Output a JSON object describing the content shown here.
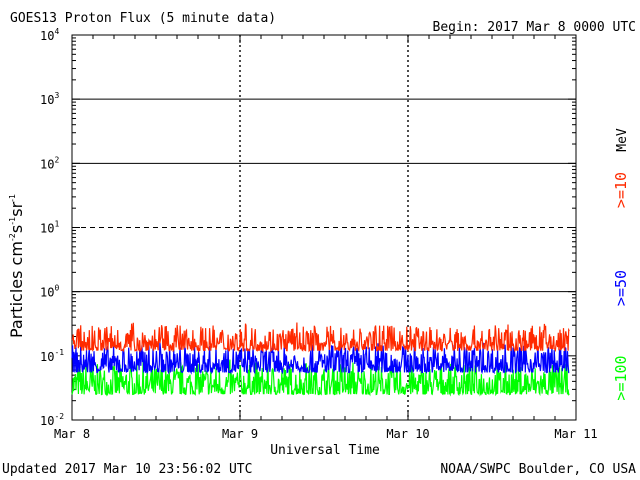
{
  "chart_data": {
    "type": "line",
    "title": "GOES13 Proton Flux (5 minute data)",
    "begin_label": "Begin: 2017 Mar 8 0000 UTC",
    "xlabel": "Universal Time",
    "ylabel_main": "Particles cm",
    "ylabel_exp1": "-2",
    "ylabel_s": "s",
    "ylabel_exp2": "-1",
    "ylabel_sr": "sr",
    "ylabel_exp3": "-1",
    "x_ticks": [
      "Mar 8",
      "Mar 9",
      "Mar 10",
      "Mar 11"
    ],
    "x_range_days": [
      0,
      3
    ],
    "y_scale": "log",
    "ylim": [
      0.01,
      10000
    ],
    "y_ticks": [
      {
        "base": "10",
        "exp": "4"
      },
      {
        "base": "10",
        "exp": "3"
      },
      {
        "base": "10",
        "exp": "2"
      },
      {
        "base": "10",
        "exp": "1"
      },
      {
        "base": "10",
        "exp": "0"
      },
      {
        "base": "10",
        "exp": "-1"
      },
      {
        "base": "10",
        "exp": "-2"
      }
    ],
    "unit_label": "MeV",
    "series": [
      {
        "name": ">=10",
        "color": "#ff2a00",
        "typical_range": [
          0.12,
          0.3
        ]
      },
      {
        "name": ">=50",
        "color": "#0000ff",
        "typical_range": [
          0.055,
          0.15
        ]
      },
      {
        "name": ">=100",
        "color": "#00ff00",
        "typical_range": [
          0.025,
          0.075
        ]
      }
    ]
  },
  "footer": {
    "updated": "Updated 2017 Mar 10 23:56:02 UTC",
    "source": "NOAA/SWPC Boulder, CO USA"
  }
}
